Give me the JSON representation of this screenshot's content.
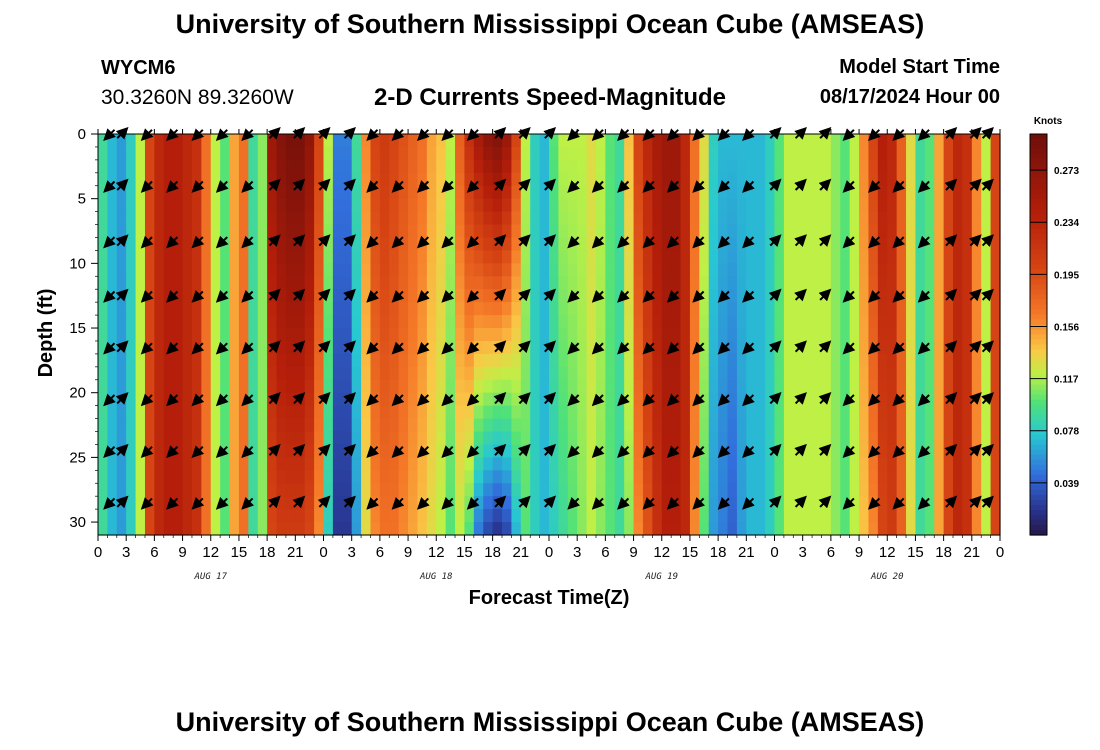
{
  "page": {
    "title": "University of Southern Mississippi Ocean Cube (AMSEAS)",
    "bottom_title": "University of Southern Mississippi Ocean Cube (AMSEAS)",
    "station_id": "WYCM6",
    "station_coords": "30.3260N  89.3260W",
    "subtitle": "2-D Currents Speed-Magnitude",
    "model_start_label": "Model Start Time",
    "model_start_value": "08/17/2024 Hour 00"
  },
  "chart_data": {
    "type": "heatmap",
    "title": "2-D Currents Speed-Magnitude",
    "xlabel": "Forecast Time(Z)",
    "ylabel": "Depth (ft)",
    "xlim": [
      0,
      96
    ],
    "ylim": [
      31,
      0
    ],
    "x_tick_hours": [
      0,
      3,
      6,
      9,
      12,
      15,
      18,
      21,
      24,
      27,
      30,
      33,
      36,
      39,
      42,
      45,
      48,
      51,
      54,
      57,
      60,
      63,
      66,
      69,
      72,
      75,
      78,
      81,
      84,
      87,
      90,
      93,
      96
    ],
    "x_tick_labels": [
      "0",
      "3",
      "6",
      "9",
      "12",
      "15",
      "18",
      "21",
      "0",
      "3",
      "6",
      "9",
      "12",
      "15",
      "18",
      "21",
      "0",
      "3",
      "6",
      "9",
      "12",
      "15",
      "18",
      "21",
      "0",
      "3",
      "6",
      "9",
      "12",
      "15",
      "18",
      "21",
      "0"
    ],
    "date_labels": [
      {
        "hour": 12,
        "label": "AUG 17"
      },
      {
        "hour": 36,
        "label": "AUG 18"
      },
      {
        "hour": 60,
        "label": "AUG 19"
      },
      {
        "hour": 84,
        "label": "AUG 20"
      }
    ],
    "y_ticks": [
      0,
      5,
      10,
      15,
      20,
      25,
      30
    ],
    "colorbar": {
      "title": "Knots",
      "ticks": [
        0.039,
        0.078,
        0.117,
        0.156,
        0.195,
        0.234,
        0.273
      ],
      "range": [
        0.0,
        0.3
      ]
    },
    "speed_profile": {
      "hours": [
        0,
        1,
        2,
        3,
        4,
        5,
        6,
        7,
        8,
        9,
        10,
        11,
        12,
        13,
        14,
        15,
        16,
        17,
        18,
        19,
        20,
        21,
        22,
        23,
        24,
        25,
        26,
        27,
        28,
        29,
        30,
        31,
        32,
        33,
        34,
        35,
        36,
        37,
        38,
        39,
        40,
        41,
        42,
        43,
        44,
        45,
        46,
        47,
        48,
        49,
        50,
        51,
        52,
        53,
        54,
        55,
        56,
        57,
        58,
        59,
        60,
        61,
        62,
        63,
        64,
        65,
        66,
        67,
        68,
        69,
        70,
        71,
        72,
        73,
        74,
        75,
        76,
        77,
        78,
        79,
        80,
        81,
        82,
        83,
        84,
        85,
        86,
        87,
        88,
        89,
        90,
        91,
        92,
        93,
        94,
        95
      ],
      "surface_knots": [
        0.09,
        0.07,
        0.06,
        0.08,
        0.12,
        0.2,
        0.23,
        0.24,
        0.24,
        0.23,
        0.22,
        0.17,
        0.12,
        0.1,
        0.15,
        0.17,
        0.09,
        0.11,
        0.26,
        0.28,
        0.29,
        0.29,
        0.27,
        0.2,
        0.12,
        0.05,
        0.05,
        0.09,
        0.16,
        0.2,
        0.21,
        0.2,
        0.19,
        0.18,
        0.17,
        0.15,
        0.14,
        0.12,
        0.18,
        0.22,
        0.25,
        0.27,
        0.28,
        0.26,
        0.2,
        0.12,
        0.08,
        0.07,
        0.1,
        0.12,
        0.12,
        0.12,
        0.13,
        0.12,
        0.1,
        0.09,
        0.14,
        0.2,
        0.23,
        0.25,
        0.26,
        0.26,
        0.23,
        0.17,
        0.13,
        0.08,
        0.07,
        0.07,
        0.07,
        0.07,
        0.07,
        0.08,
        0.1,
        0.12,
        0.12,
        0.12,
        0.12,
        0.12,
        0.11,
        0.1,
        0.12,
        0.16,
        0.2,
        0.24,
        0.23,
        0.18,
        0.13,
        0.09,
        0.1,
        0.15,
        0.2,
        0.23,
        0.22,
        0.16,
        0.12,
        0.2
      ],
      "bottom_knots": [
        0.09,
        0.07,
        0.06,
        0.08,
        0.12,
        0.2,
        0.23,
        0.24,
        0.24,
        0.23,
        0.22,
        0.17,
        0.12,
        0.1,
        0.15,
        0.17,
        0.09,
        0.11,
        0.2,
        0.21,
        0.21,
        0.21,
        0.2,
        0.16,
        0.08,
        0.02,
        0.02,
        0.06,
        0.13,
        0.16,
        0.17,
        0.17,
        0.16,
        0.15,
        0.14,
        0.13,
        0.12,
        0.1,
        0.12,
        0.1,
        0.05,
        0.03,
        0.02,
        0.03,
        0.07,
        0.1,
        0.08,
        0.07,
        0.08,
        0.09,
        0.1,
        0.11,
        0.12,
        0.11,
        0.1,
        0.09,
        0.11,
        0.16,
        0.19,
        0.22,
        0.24,
        0.24,
        0.23,
        0.16,
        0.1,
        0.06,
        0.05,
        0.04,
        0.06,
        0.07,
        0.07,
        0.08,
        0.1,
        0.12,
        0.12,
        0.12,
        0.12,
        0.12,
        0.11,
        0.1,
        0.12,
        0.14,
        0.16,
        0.2,
        0.21,
        0.18,
        0.13,
        0.09,
        0.1,
        0.15,
        0.2,
        0.23,
        0.22,
        0.16,
        0.12,
        0.2
      ]
    },
    "vector_rows_depth_ft": [
      0,
      4,
      8.3,
      12.5,
      16.5,
      20.5,
      24.5,
      28.5
    ],
    "vector_columns_hour": [
      1.3,
      2.5,
      5.3,
      8,
      10.7,
      13.3,
      16,
      18.7,
      21.3,
      24,
      26.7,
      29.3,
      32,
      34.7,
      37.3,
      40,
      42.7,
      45.3,
      48,
      50.7,
      53.3,
      56,
      58.7,
      61.3,
      64,
      66.7,
      69.3,
      72,
      74.7,
      77.3,
      80,
      82.7,
      85.3,
      88,
      90.7,
      93.3,
      94.6
    ],
    "vector_directions_deg": [
      225,
      45,
      225,
      225,
      225,
      225,
      225,
      45,
      45,
      45,
      45,
      225,
      225,
      225,
      225,
      225,
      45,
      45,
      45,
      225,
      225,
      225,
      225,
      225,
      225,
      225,
      225,
      45,
      45,
      45,
      225,
      225,
      225,
      225,
      45,
      45,
      45
    ]
  }
}
